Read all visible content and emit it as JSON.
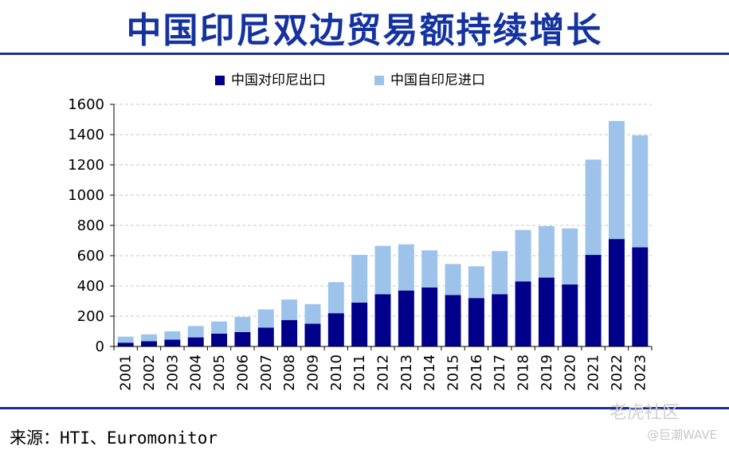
{
  "title": "中国印尼双边贸易额持续增长",
  "source": "来源：HTI、Euromonitor",
  "watermark": {
    "main": "老虎社区",
    "sub": "@巨潮WAVE"
  },
  "colors": {
    "export": "#00008b",
    "import": "#9dc3ea",
    "title": "#1432a0",
    "rule": "#1b2f8f",
    "grid": "#c8c8c8"
  },
  "chart_data": {
    "type": "bar",
    "stacked": true,
    "categories": [
      "2001",
      "2002",
      "2003",
      "2004",
      "2005",
      "2006",
      "2007",
      "2008",
      "2009",
      "2010",
      "2011",
      "2012",
      "2013",
      "2014",
      "2015",
      "2016",
      "2017",
      "2018",
      "2019",
      "2020",
      "2021",
      "2022",
      "2023"
    ],
    "series": [
      {
        "name": "中国对印尼出口",
        "values": [
          25,
          35,
          45,
          60,
          85,
          95,
          125,
          175,
          150,
          220,
          290,
          345,
          370,
          390,
          340,
          320,
          345,
          430,
          455,
          410,
          605,
          710,
          655
        ]
      },
      {
        "name": "中国自印尼进口",
        "values": [
          40,
          45,
          55,
          75,
          80,
          100,
          120,
          135,
          130,
          205,
          315,
          320,
          305,
          245,
          205,
          210,
          285,
          340,
          340,
          370,
          630,
          780,
          740
        ]
      }
    ],
    "ylim": [
      0,
      1600
    ],
    "yticks": [
      0,
      200,
      400,
      600,
      800,
      1000,
      1200,
      1400,
      1600
    ],
    "grid": true,
    "legend": "top-center"
  }
}
